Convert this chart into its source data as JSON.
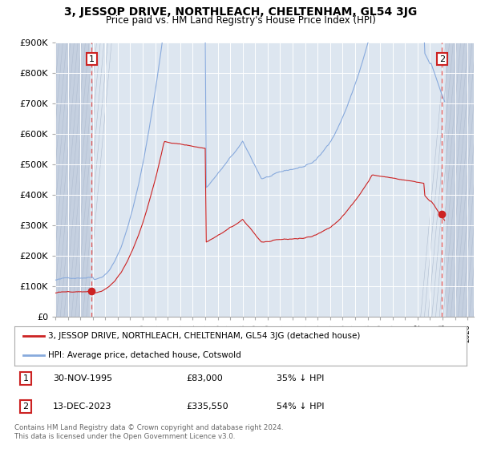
{
  "title": "3, JESSOP DRIVE, NORTHLEACH, CHELTENHAM, GL54 3JG",
  "subtitle": "Price paid vs. HM Land Registry's House Price Index (HPI)",
  "background_color": "#ffffff",
  "plot_bg_color": "#dde6f0",
  "hatch_color": "#c5d0e0",
  "grid_color": "#ffffff",
  "hpi_color": "#88aadd",
  "price_color": "#cc2222",
  "dashed_color": "#e06060",
  "legend_label_price": "3, JESSOP DRIVE, NORTHLEACH, CHELTENHAM, GL54 3JG (detached house)",
  "legend_label_hpi": "HPI: Average price, detached house, Cotswold",
  "annotation1_date": "30-NOV-1995",
  "annotation1_value": "£83,000",
  "annotation1_pct": "35% ↓ HPI",
  "annotation2_date": "13-DEC-2023",
  "annotation2_value": "£335,550",
  "annotation2_pct": "54% ↓ HPI",
  "footnote": "Contains HM Land Registry data © Crown copyright and database right 2024.\nThis data is licensed under the Open Government Licence v3.0.",
  "sale1_year": 1995.917,
  "sale1_value": 83000,
  "sale2_year": 2023.958,
  "sale2_value": 335550,
  "ylim": [
    0,
    900000
  ],
  "xlim": [
    1993.0,
    2026.5
  ],
  "hatch_left_end": 1995.75,
  "hatch_right_start": 2024.25
}
